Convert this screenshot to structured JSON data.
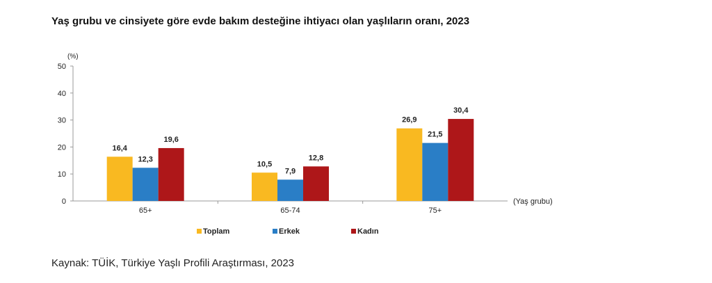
{
  "title": "Yaş grubu ve cinsiyete göre evde bakım desteğine ihtiyacı olan yaşlıların oranı, 2023",
  "source": "Kaynak: TÜİK, Türkiye Yaşlı Profili Araştırması, 2023",
  "chart_data": {
    "type": "bar",
    "title": "Yaş grubu ve cinsiyete göre evde bakım desteğine ihtiyacı olan yaşlıların oranı, 2023",
    "xlabel": "(Yaş grubu)",
    "ylabel": "(%)",
    "ylim": [
      0,
      50
    ],
    "yticks": [
      0,
      10,
      20,
      30,
      40,
      50
    ],
    "categories": [
      "65+",
      "65-74",
      "75+"
    ],
    "series": [
      {
        "name": "Toplam",
        "color": "#F9B921",
        "values": [
          16.4,
          10.5,
          26.9
        ],
        "labels": [
          "16,4",
          "10,5",
          "26,9"
        ]
      },
      {
        "name": "Erkek",
        "color": "#2A7EC6",
        "values": [
          12.3,
          7.9,
          21.5
        ],
        "labels": [
          "12,3",
          "7,9",
          "21,5"
        ]
      },
      {
        "name": "Kadın",
        "color": "#AE1719",
        "values": [
          19.6,
          12.8,
          30.4
        ],
        "labels": [
          "19,6",
          "12,8",
          "30,4"
        ]
      }
    ],
    "legend": "bottom",
    "grid": false
  }
}
